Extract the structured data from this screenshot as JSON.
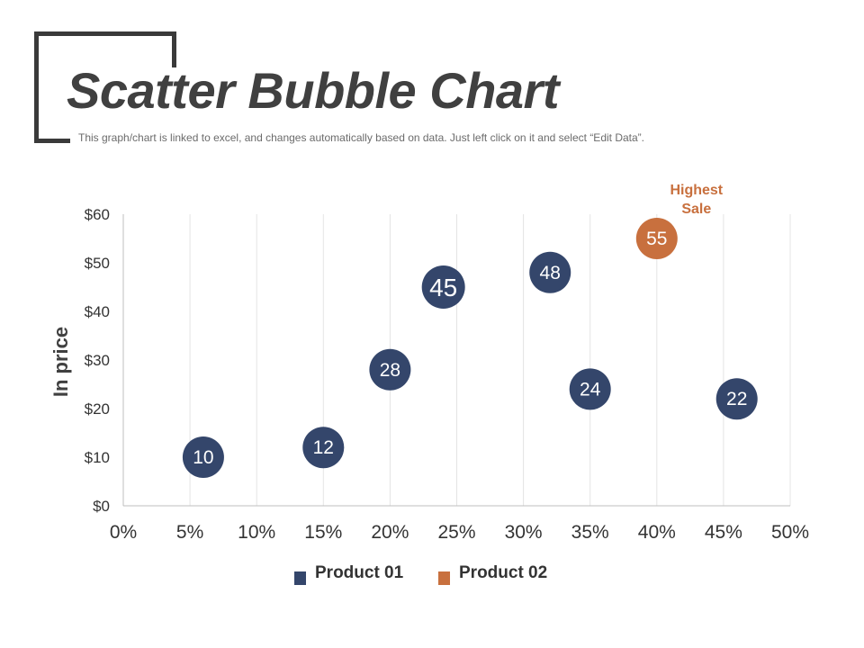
{
  "page": {
    "title": "Scatter Bubble Chart",
    "subtitle": "This graph/chart is linked to excel, and changes automatically based on data. Just left click on it and select “Edit Data”."
  },
  "colors": {
    "product_01": "#34466b",
    "product_02": "#c8703e",
    "grid": "#e4e4e4",
    "axis": "#bfbfbf"
  },
  "chart_data": {
    "type": "scatter",
    "title": "",
    "xlabel": "",
    "ylabel": "In price",
    "xlim": [
      0,
      50
    ],
    "ylim": [
      0,
      60
    ],
    "x_ticks": [
      0,
      5,
      10,
      15,
      20,
      25,
      30,
      35,
      40,
      45,
      50
    ],
    "x_tick_labels": [
      "0%",
      "5%",
      "10%",
      "15%",
      "20%",
      "25%",
      "30%",
      "35%",
      "40%",
      "45%",
      "50%"
    ],
    "y_ticks": [
      0,
      10,
      20,
      30,
      40,
      50,
      60
    ],
    "y_tick_labels": [
      "$0",
      "$10",
      "$20",
      "$30",
      "$40",
      "$50",
      "$60"
    ],
    "grid": "vertical",
    "legend_position": "bottom-center",
    "series": [
      {
        "name": "Product 01",
        "color_key": "product_01",
        "points": [
          {
            "x": 6,
            "y": 10,
            "label": "10"
          },
          {
            "x": 15,
            "y": 12,
            "label": "12"
          },
          {
            "x": 20,
            "y": 28,
            "label": "28"
          },
          {
            "x": 24,
            "y": 45,
            "label": "45"
          },
          {
            "x": 32,
            "y": 48,
            "label": "48"
          },
          {
            "x": 35,
            "y": 24,
            "label": "24"
          },
          {
            "x": 46,
            "y": 22,
            "label": "22"
          }
        ]
      },
      {
        "name": "Product 02",
        "color_key": "product_02",
        "points": [
          {
            "x": 40,
            "y": 55,
            "label": "55"
          }
        ]
      }
    ],
    "annotations": [
      {
        "lines": [
          "Highest",
          "Sale"
        ],
        "target_series": "Product 02"
      }
    ]
  },
  "legend": {
    "items": [
      {
        "label": "Product 01",
        "color_key": "product_01"
      },
      {
        "label": "Product 02",
        "color_key": "product_02"
      }
    ]
  }
}
